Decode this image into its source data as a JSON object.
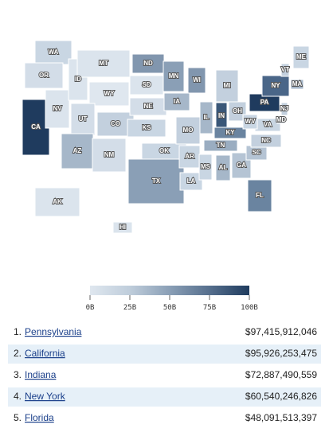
{
  "map": {
    "states": [
      {
        "label": "WA",
        "color": "#c9d6e3"
      },
      {
        "label": "OR",
        "color": "#d3dde8"
      },
      {
        "label": "CA",
        "color": "#1f3b5e"
      },
      {
        "label": "NV",
        "color": "#dbe4ed"
      },
      {
        "label": "ID",
        "color": "#dbe4ed"
      },
      {
        "label": "MT",
        "color": "#dbe4ed"
      },
      {
        "label": "WY",
        "color": "#dfe7ef"
      },
      {
        "label": "UT",
        "color": "#d3dde8"
      },
      {
        "label": "AZ",
        "color": "#a6b7c9"
      },
      {
        "label": "CO",
        "color": "#c3d0de"
      },
      {
        "label": "NM",
        "color": "#d3dde8"
      },
      {
        "label": "ND",
        "color": "#8196ae"
      },
      {
        "label": "SD",
        "color": "#dbe4ed"
      },
      {
        "label": "NE",
        "color": "#d3dde8"
      },
      {
        "label": "KS",
        "color": "#c9d6e3"
      },
      {
        "label": "OK",
        "color": "#c9d6e3"
      },
      {
        "label": "TX",
        "color": "#8a9fb6"
      },
      {
        "label": "MN",
        "color": "#8a9fb6"
      },
      {
        "label": "IA",
        "color": "#a6b7c9"
      },
      {
        "label": "MO",
        "color": "#c3d0de"
      },
      {
        "label": "AR",
        "color": "#c9d6e3"
      },
      {
        "label": "LA",
        "color": "#c9d6e3"
      },
      {
        "label": "WI",
        "color": "#8196ae"
      },
      {
        "label": "IL",
        "color": "#a6b7c9"
      },
      {
        "label": "MI",
        "color": "#c3d0de"
      },
      {
        "label": "IN",
        "color": "#3a5778"
      },
      {
        "label": "OH",
        "color": "#c3d0de"
      },
      {
        "label": "KY",
        "color": "#6a84a0"
      },
      {
        "label": "TN",
        "color": "#9aadc1"
      },
      {
        "label": "MS",
        "color": "#c9d6e3"
      },
      {
        "label": "AL",
        "color": "#a6b7c9"
      },
      {
        "label": "GA",
        "color": "#b5c4d4"
      },
      {
        "label": "FL",
        "color": "#6a84a0"
      },
      {
        "label": "SC",
        "color": "#b5c4d4"
      },
      {
        "label": "NC",
        "color": "#c3d0de"
      },
      {
        "label": "VA",
        "color": "#c9d6e3"
      },
      {
        "label": "WV",
        "color": "#c9d6e3"
      },
      {
        "label": "PA",
        "color": "#1f3b5e"
      },
      {
        "label": "NY",
        "color": "#4a6688"
      },
      {
        "label": "VT",
        "color": "#c3d0de"
      },
      {
        "label": "ME",
        "color": "#c9d6e3"
      },
      {
        "label": "MA",
        "color": "#a6b7c9"
      },
      {
        "label": "NJ",
        "color": "#c3d0de"
      },
      {
        "label": "MD",
        "color": "#c9d6e3"
      },
      {
        "label": "AK",
        "color": "#dbe4ed"
      },
      {
        "label": "HI",
        "color": "#dbe4ed"
      }
    ]
  },
  "legend": {
    "ticks": [
      {
        "value": 0,
        "label": "0B"
      },
      {
        "value": 25,
        "label": "25B"
      },
      {
        "value": 50,
        "label": "50B"
      },
      {
        "value": 75,
        "label": "75B"
      },
      {
        "value": 100,
        "label": "100B"
      }
    ],
    "range": [
      0,
      100
    ],
    "colors": [
      "#dfe7ef",
      "#bfcddb",
      "#8a9fb6",
      "#566f8d",
      "#1f3b5e"
    ]
  },
  "ranking": {
    "rows": [
      {
        "rank": "1.",
        "name": "Pennsylvania",
        "value": "$97,415,912,046"
      },
      {
        "rank": "2.",
        "name": "California",
        "value": "$95,926,253,475"
      },
      {
        "rank": "3.",
        "name": "Indiana",
        "value": "$72,887,490,559"
      },
      {
        "rank": "4.",
        "name": "New York",
        "value": "$60,540,246,826"
      },
      {
        "rank": "5.",
        "name": "Florida",
        "value": "$48,091,513,397"
      }
    ]
  }
}
